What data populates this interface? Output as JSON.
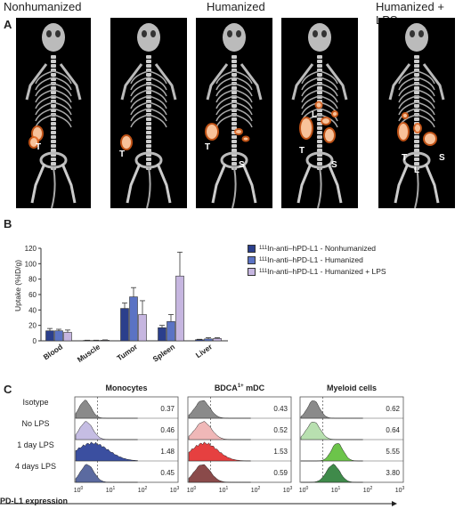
{
  "panelA": {
    "letter": "A",
    "headers": {
      "nonhumanized": "Nonhumanized",
      "humanized": "Humanized",
      "humanized_lps": "Humanized + LPS"
    },
    "scans": [
      {
        "labels": [
          "T"
        ]
      },
      {
        "labels": [
          "T"
        ]
      },
      {
        "labels": [
          "T",
          "S"
        ]
      },
      {
        "labels": [
          "L",
          "T",
          "S"
        ]
      },
      {
        "labels": [
          "T",
          "L",
          "S"
        ]
      }
    ]
  },
  "panelB": {
    "letter": "B",
    "legend": [
      {
        "prefix": "111",
        "text": "In-anti–hPD-L1 - Nonhumanized",
        "color": "#2b3f8c"
      },
      {
        "prefix": "111",
        "text": "In-anti–hPD-L1 - Humanized",
        "color": "#5b73c4"
      },
      {
        "prefix": "111",
        "text": "In-anti–hPD-L1 - Humanized + LPS",
        "color": "#c6b6e0"
      }
    ]
  },
  "chart_data": {
    "type": "bar",
    "categories": [
      "Blood",
      "Muscle",
      "Tumor",
      "Spleen",
      "Liver"
    ],
    "ylabel": "Uptake (%ID/g)",
    "ylim": [
      0,
      120
    ],
    "yticks": [
      0,
      20,
      40,
      60,
      80,
      100,
      120
    ],
    "series": [
      {
        "name": "111In-anti–hPD-L1 - Nonhumanized",
        "values": [
          13,
          0.5,
          42,
          17,
          1.5
        ],
        "errors": [
          3,
          0.3,
          7,
          3,
          0.5
        ]
      },
      {
        "name": "111In-anti–hPD-L1 - Humanized",
        "values": [
          13,
          0.5,
          57,
          25,
          2.5
        ],
        "errors": [
          2,
          0.3,
          12,
          9,
          1.5
        ]
      },
      {
        "name": "111In-anti–hPD-L1 - Humanized + LPS",
        "values": [
          11,
          0.8,
          34,
          84,
          3
        ],
        "errors": [
          3,
          0.4,
          18,
          31,
          1
        ]
      }
    ]
  },
  "panelC": {
    "letter": "C",
    "xaxis_label": "PD-L1 expression",
    "rows": [
      "Isotype",
      "No LPS",
      "1 day LPS",
      "4 days LPS"
    ],
    "ticks": [
      "10",
      "10",
      "10",
      "10"
    ],
    "tick_exps": [
      "0",
      "1",
      "2",
      "3"
    ],
    "groups": [
      {
        "title": "Monocytes",
        "sup": "",
        "values": [
          "0.37",
          "0.46",
          "1.48",
          "0.45"
        ],
        "colors": [
          "#8a8a8a",
          "#c5bde3",
          "#3b4fa0",
          "#5b6aa0"
        ]
      },
      {
        "title": "BDCA",
        "sup": "1+",
        "title_suffix": " mDC",
        "values": [
          "0.43",
          "0.52",
          "1.53",
          "0.59"
        ],
        "colors": [
          "#8a8a8a",
          "#f0b8b8",
          "#e64040",
          "#8a4a4a"
        ]
      },
      {
        "title": "Myeloid cells",
        "sup": "",
        "values": [
          "0.62",
          "0.64",
          "5.55",
          "3.80"
        ],
        "colors": [
          "#8a8a8a",
          "#b8e0b0",
          "#6cc44a",
          "#3f8a4a"
        ]
      }
    ]
  }
}
